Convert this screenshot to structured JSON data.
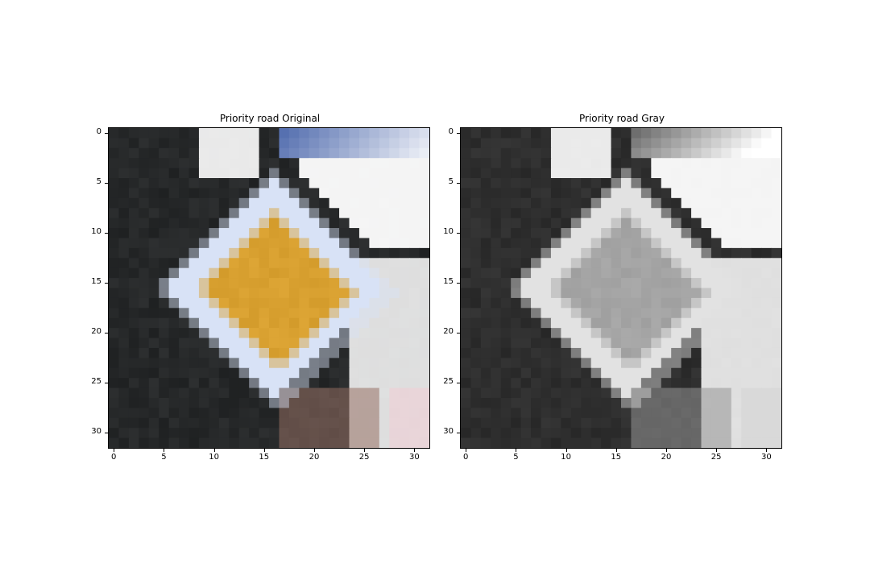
{
  "chart_data": [
    {
      "type": "heatmap",
      "title": "Priority road Original",
      "xlabel": "",
      "ylabel": "",
      "xlim": [
        -0.5,
        31.5
      ],
      "ylim": [
        31.5,
        -0.5
      ],
      "xticks": [
        0,
        5,
        10,
        15,
        20,
        25,
        30
      ],
      "yticks": [
        0,
        5,
        10,
        15,
        20,
        25,
        30
      ],
      "grid": false,
      "image_size": [
        32,
        32
      ],
      "content": "Diamond-shaped priority road sign: yellow-orange inner diamond bordered in white, on a dark background with blue sky at top right and white area at right",
      "colors": {
        "sign_center": "#d8a030",
        "sign_border": "#d8e2f6",
        "background": "#262829",
        "sky": "#5670b0",
        "white": "#ffffff"
      }
    },
    {
      "type": "heatmap",
      "title": "Priority road Gray",
      "xlabel": "",
      "ylabel": "",
      "xlim": [
        -0.5,
        31.5
      ],
      "ylim": [
        31.5,
        -0.5
      ],
      "xticks": [
        0,
        5,
        10,
        15,
        20,
        25,
        30
      ],
      "yticks": [
        0,
        5,
        10,
        15,
        20,
        25,
        30
      ],
      "grid": false,
      "image_size": [
        32,
        32
      ],
      "colormap": "gray",
      "content": "Grayscale version of the same sign: gray inner diamond, light border, dark background",
      "colors": {
        "sign_center": "#a4a4a4",
        "sign_border": "#e2e2e2",
        "background": "#2e2e2e",
        "white": "#ffffff"
      }
    }
  ]
}
